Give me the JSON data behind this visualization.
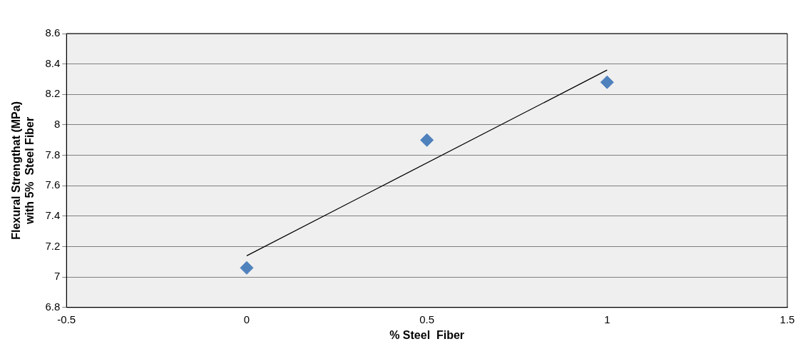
{
  "chart_data": {
    "type": "scatter",
    "xlabel": "% Steel  Fiber",
    "ylabel": "Flexural Strengthat (MPa)\nwith 5%  Steel Fiber",
    "xlim": [
      -0.5,
      1.5
    ],
    "xticks": [
      -0.5,
      0,
      0.5,
      1,
      1.5
    ],
    "ylim": [
      6.8,
      8.6
    ],
    "yticks": [
      6.8,
      7,
      7.2,
      7.4,
      7.6,
      7.8,
      8,
      8.2,
      8.4,
      8.6
    ],
    "grid": "y",
    "legend": false,
    "marker": "diamond",
    "series": [
      {
        "type": "scatter",
        "color": "#4f81bd",
        "x": [
          0,
          0.5,
          1
        ],
        "values": [
          7.06,
          7.9,
          8.28
        ]
      },
      {
        "type": "line",
        "color": "#000000",
        "x": [
          0,
          1
        ],
        "values": [
          7.14,
          8.36
        ],
        "marker": "none"
      }
    ]
  }
}
